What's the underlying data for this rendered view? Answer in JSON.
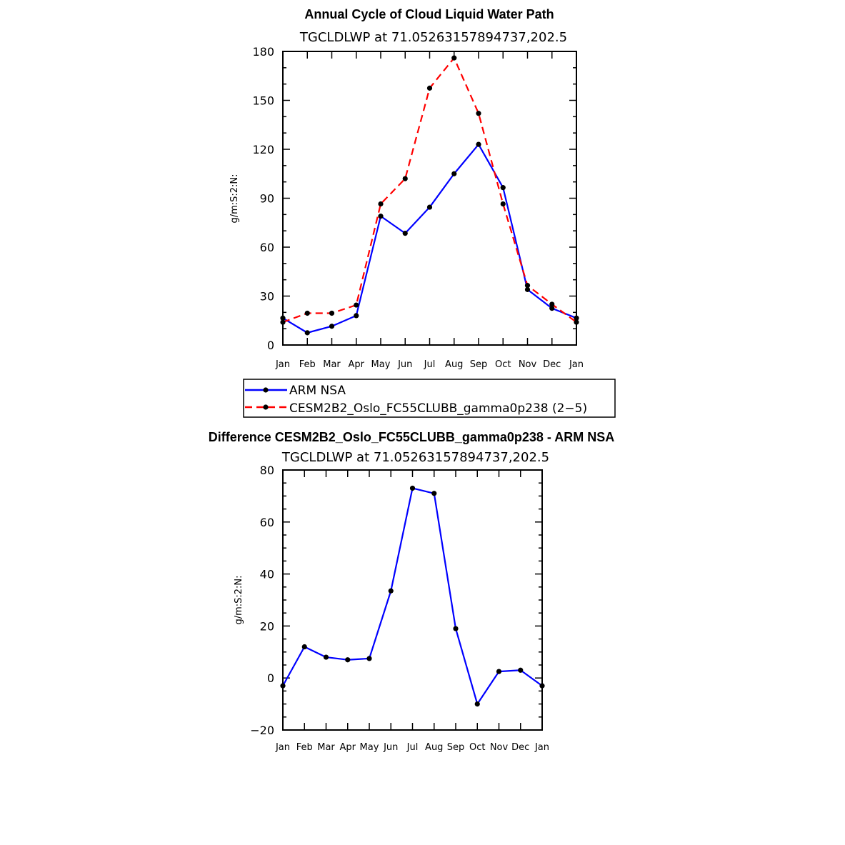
{
  "chart_data": [
    {
      "type": "line",
      "title": "Annual Cycle of Cloud Liquid Water Path",
      "subtitle": "TGCLDLWP  at  71.05263157894737,202.5",
      "xlabel": "",
      "ylabel": "g/m:S:2:N:",
      "categories": [
        "Jan",
        "Feb",
        "Mar",
        "Apr",
        "May",
        "Jun",
        "Jul",
        "Aug",
        "Sep",
        "Oct",
        "Nov",
        "Dec",
        "Jan"
      ],
      "ylim": [
        0,
        180
      ],
      "yticks": [
        "0",
        "30",
        "60",
        "90",
        "120",
        "150",
        "180"
      ],
      "grid": false,
      "legend_position": "bottom",
      "series": [
        {
          "name": "ARM  NSA",
          "color": "#0000ff",
          "dash": "solid",
          "values": [
            16.5,
            7.5,
            11.5,
            18,
            79,
            68.5,
            84.5,
            105,
            123,
            96.5,
            34,
            22.5,
            16.5
          ]
        },
        {
          "name": "CESM2B2_Oslo_FC55CLUBB_gamma0p238 (2−5)",
          "color": "#ff0000",
          "dash": "dashed",
          "values": [
            14,
            19.5,
            19.5,
            24.5,
            86.5,
            102,
            157.5,
            176,
            142,
            86.5,
            36.5,
            25,
            14
          ]
        }
      ]
    },
    {
      "type": "line",
      "title": "Difference CESM2B2_Oslo_FC55CLUBB_gamma0p238 - ARM NSA",
      "subtitle": "TGCLDLWP  at  71.05263157894737,202.5",
      "xlabel": "",
      "ylabel": "g/m:S:2:N:",
      "categories": [
        "Jan",
        "Feb",
        "Mar",
        "Apr",
        "May",
        "Jun",
        "Jul",
        "Aug",
        "Sep",
        "Oct",
        "Nov",
        "Dec",
        "Jan"
      ],
      "ylim": [
        -20,
        80
      ],
      "yticks": [
        "−20",
        "0",
        "20",
        "40",
        "60",
        "80"
      ],
      "grid": false,
      "series": [
        {
          "color": "#0000ff",
          "dash": "solid",
          "values": [
            -3,
            12,
            8,
            7,
            7.5,
            33.5,
            73,
            71,
            19,
            -10,
            2.5,
            3,
            -3
          ]
        }
      ]
    }
  ]
}
